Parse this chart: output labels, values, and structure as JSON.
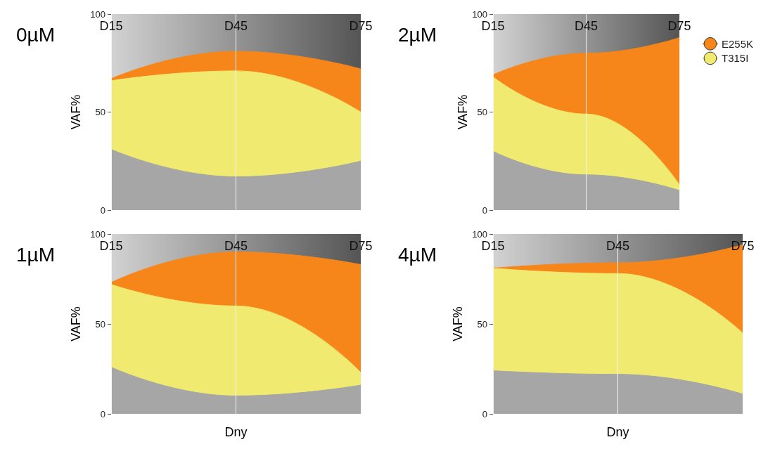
{
  "chart_data": [
    {
      "type": "area",
      "title": "0µM",
      "ylabel": "VAF%",
      "categories": [
        "D15",
        "D45",
        "D75"
      ],
      "stacked": true,
      "ylim": [
        0,
        100
      ],
      "yticks": [
        0,
        50,
        100
      ],
      "grid": "x",
      "legend": false,
      "series": [
        {
          "color": "#a6a6a6",
          "values": [
            31,
            17,
            25
          ]
        },
        {
          "color": "#f0eb70",
          "values": [
            35,
            54,
            25
          ]
        },
        {
          "color": "#f7861a",
          "values": [
            1,
            10,
            22
          ]
        }
      ]
    },
    {
      "type": "area",
      "title": "2µM",
      "ylabel": "VAF%",
      "categories": [
        "D15",
        "D45",
        "D75"
      ],
      "stacked": true,
      "ylim": [
        0,
        100
      ],
      "yticks": [
        0,
        50,
        100
      ],
      "grid": "x",
      "legend": "top right",
      "series": [
        {
          "color": "#a6a6a6",
          "values": [
            30,
            18,
            10
          ]
        },
        {
          "name": "T315I",
          "color": "#f0eb70",
          "values": [
            38,
            31,
            3
          ]
        },
        {
          "name": "E255K",
          "color": "#f7861a",
          "values": [
            1,
            31,
            75
          ]
        }
      ]
    },
    {
      "type": "area",
      "title": "1µM",
      "ylabel": "VAF%",
      "xlabel": "Dny",
      "categories": [
        "D15",
        "D45",
        "D75"
      ],
      "stacked": true,
      "ylim": [
        0,
        100
      ],
      "yticks": [
        0,
        50,
        100
      ],
      "grid": "x",
      "legend": false,
      "series": [
        {
          "color": "#a6a6a6",
          "values": [
            26,
            10,
            16
          ]
        },
        {
          "color": "#f0eb70",
          "values": [
            46,
            50,
            7
          ]
        },
        {
          "color": "#f7861a",
          "values": [
            1,
            30,
            60
          ]
        }
      ]
    },
    {
      "type": "area",
      "title": "4µM",
      "ylabel": "VAF%",
      "xlabel": "Dny",
      "categories": [
        "D15",
        "D45",
        "D75"
      ],
      "stacked": true,
      "ylim": [
        0,
        100
      ],
      "yticks": [
        0,
        50,
        100
      ],
      "grid": "x",
      "legend": false,
      "series": [
        {
          "color": "#a6a6a6",
          "values": [
            24,
            22,
            11
          ]
        },
        {
          "color": "#f0eb70",
          "values": [
            57,
            56,
            34
          ]
        },
        {
          "color": "#f7861a",
          "values": [
            0,
            6,
            49
          ]
        }
      ]
    }
  ]
}
